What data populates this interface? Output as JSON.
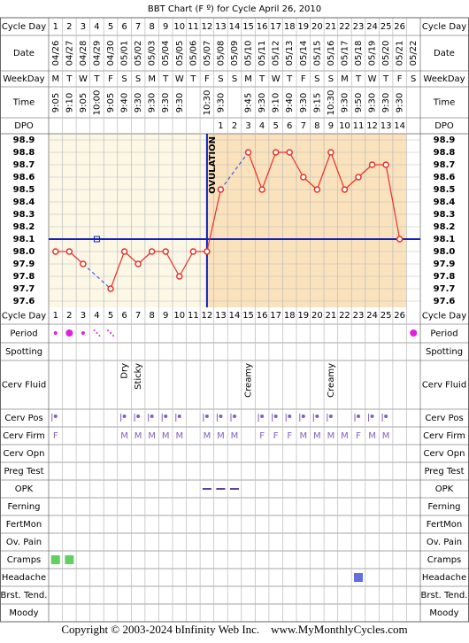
{
  "title": "BBT Chart (F º) for Cycle April 26, 2010",
  "header_labels": [
    "Cycle Day",
    "Date",
    "WeekDay",
    "Time",
    "DPO"
  ],
  "bottom_labels": [
    "Cycle Day",
    "Period",
    "Spotting",
    "Cerv Fluid",
    "Cerv Pos",
    "Cerv Firm",
    "Cerv Opn",
    "Preg Test",
    "OPK",
    "Ferning",
    "FertMon",
    "Ov. Pain",
    "Cramps",
    "Headache",
    "Brst. Tend.",
    "Moody"
  ],
  "days": {
    "cycle_day": [
      1,
      2,
      3,
      4,
      5,
      6,
      7,
      8,
      9,
      10,
      11,
      12,
      13,
      14,
      15,
      16,
      17,
      18,
      19,
      20,
      21,
      22,
      23,
      24,
      25,
      26,
      null
    ],
    "dates": [
      "04/26",
      "04/27",
      "04/28",
      "04/29",
      "04/30",
      "05/01",
      "05/02",
      "05/03",
      "05/04",
      "05/05",
      "05/06",
      "05/07",
      "05/08",
      "05/09",
      "05/10",
      "05/11",
      "05/12",
      "05/13",
      "05/14",
      "05/15",
      "05/16",
      "05/17",
      "05/18",
      "05/19",
      "05/20",
      "05/21",
      "05/22"
    ],
    "weekdays": [
      "M",
      "T",
      "W",
      "T",
      "F",
      "S",
      "S",
      "M",
      "T",
      "W",
      "T",
      "F",
      "S",
      "S",
      "M",
      "T",
      "W",
      "T",
      "F",
      "S",
      "S",
      "M",
      "T",
      "W",
      "T",
      "F",
      "S"
    ],
    "times": [
      "9:05",
      "9:10",
      "9:05",
      "10:00",
      "9:05",
      "9:40",
      "9:30",
      "9:30",
      "9:30",
      "9:30",
      null,
      "10:30",
      "9:30",
      null,
      "9:45",
      "9:30",
      "9:10",
      "9:40",
      "9:30",
      "9:15",
      "10:30",
      "9:30",
      "9:50",
      "9:30",
      "9:30",
      "9:30",
      null
    ],
    "dpo": [
      null,
      null,
      null,
      null,
      null,
      null,
      null,
      null,
      null,
      null,
      null,
      null,
      1,
      2,
      3,
      4,
      5,
      6,
      7,
      8,
      9,
      10,
      11,
      12,
      13,
      14,
      null
    ],
    "period": [
      1,
      2,
      1,
      0.5,
      0.5,
      null,
      null,
      null,
      null,
      null,
      null,
      null,
      null,
      null,
      null,
      null,
      null,
      null,
      null,
      null,
      null,
      null,
      null,
      null,
      null,
      null,
      2
    ],
    "cerv_fluid": [
      null,
      null,
      null,
      null,
      null,
      "Dry",
      "Sticky",
      null,
      null,
      null,
      null,
      null,
      null,
      null,
      "Creamy",
      null,
      null,
      null,
      null,
      null,
      "Creamy",
      null,
      null,
      null,
      null,
      null,
      null
    ],
    "cerv_pos": [
      1,
      null,
      null,
      null,
      null,
      1,
      1,
      1,
      1,
      1,
      null,
      1,
      1,
      1,
      null,
      1,
      1,
      1,
      1,
      1,
      1,
      null,
      1,
      1,
      1,
      null,
      null
    ],
    "cerv_firm": [
      "F",
      null,
      null,
      null,
      null,
      "M",
      "M",
      "M",
      "M",
      "M",
      null,
      "M",
      "M",
      "M",
      null,
      "F",
      "F",
      "F",
      "M",
      "M",
      "M",
      "M",
      "F",
      "M",
      "M",
      null,
      null
    ],
    "opk": [
      null,
      null,
      null,
      null,
      null,
      null,
      null,
      null,
      null,
      null,
      null,
      1,
      1,
      1,
      null,
      null,
      null,
      null,
      null,
      null,
      null,
      null,
      null,
      null,
      null,
      null,
      null
    ],
    "cramps": [
      1,
      1,
      null,
      null,
      null,
      null,
      null,
      null,
      null,
      null,
      null,
      null,
      null,
      null,
      null,
      null,
      null,
      null,
      null,
      null,
      null,
      null,
      null,
      null,
      null,
      null,
      null
    ],
    "headache": [
      null,
      null,
      null,
      null,
      null,
      null,
      null,
      null,
      null,
      null,
      null,
      null,
      null,
      null,
      null,
      null,
      null,
      null,
      null,
      null,
      null,
      null,
      1,
      null,
      null,
      null,
      null
    ]
  },
  "chart_data": {
    "type": "line",
    "color": "#e8302a",
    "line_color": "#e8302a",
    "values": [
      98.0,
      98.0,
      97.9,
      null,
      97.7,
      98.0,
      97.9,
      98.0,
      98.0,
      97.8,
      98.0,
      98.0,
      98.5,
      null,
      98.8,
      98.5,
      98.8,
      98.8,
      98.6,
      98.5,
      98.8,
      98.5,
      98.6,
      98.7,
      98.7,
      98.1,
      null
    ],
    "ylim": [
      97.55,
      98.95
    ],
    "yticks": [
      98.9,
      98.8,
      98.7,
      98.6,
      98.5,
      98.4,
      98.3,
      98.2,
      98.1,
      {
        "value": 98,
        "label": "98.0"
      },
      97.9,
      97.8,
      97.7,
      97.6
    ],
    "coverline": 98.1,
    "coverline_marker_day": 4,
    "ovulation_day": 12,
    "ovulation_label": "OVULATION"
  },
  "footer": "Copyright © 2003-2024 bInfinity Web Inc.    www.MyMonthlyCycles.com"
}
